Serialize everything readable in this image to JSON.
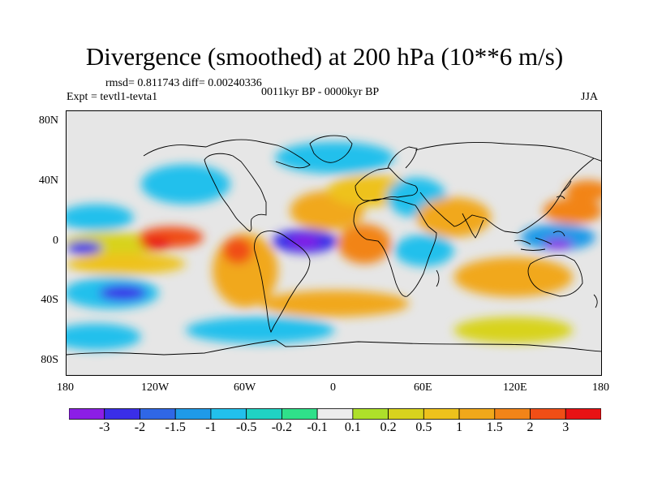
{
  "title": "Divergence (smoothed) at 200 hPa (10**6 m/s)",
  "stats": "rmsd= 0.811743 diff= 0.00240336",
  "experiment": "Expt = tevtl1-tevta1",
  "period": "0011kyr BP - 0000kyr BP",
  "season": "JJA",
  "lat_ticks": [
    "80N",
    "40N",
    "0",
    "40S",
    "80S"
  ],
  "lon_ticks": [
    "180",
    "120W",
    "60W",
    "0",
    "60E",
    "120E",
    "180"
  ],
  "colorbar": {
    "colors": [
      "#8c1ee6",
      "#3a2ee8",
      "#2f67e6",
      "#1f9ae8",
      "#22c0ec",
      "#20d3c3",
      "#2fe08a",
      "#ececec",
      "#aee02a",
      "#d8d31e",
      "#eec21c",
      "#f1a81a",
      "#f28418",
      "#f04e16",
      "#e81214"
    ],
    "labels": [
      "-3",
      "-2",
      "-1.5",
      "-1",
      "-0.5",
      "-0.2",
      "-0.1",
      "0.1",
      "0.2",
      "0.5",
      "1",
      "1.5",
      "2",
      "3"
    ]
  },
  "map_data": {
    "background": "#e6e6e6",
    "blobs": [
      {
        "lon": -150,
        "lat": 0,
        "rx": 32,
        "ry": 9,
        "c": 9
      },
      {
        "lon": -110,
        "lat": 5,
        "rx": 22,
        "ry": 8,
        "c": 13
      },
      {
        "lon": -120,
        "lat": 0,
        "rx": 10,
        "ry": 5,
        "c": 14
      },
      {
        "lon": -168,
        "lat": -3,
        "rx": 12,
        "ry": 5,
        "c": 1
      },
      {
        "lon": -140,
        "lat": -15,
        "rx": 40,
        "ry": 8,
        "c": 10
      },
      {
        "lon": -150,
        "lat": -37,
        "rx": 32,
        "ry": 12,
        "c": 4
      },
      {
        "lon": -142,
        "lat": -37,
        "rx": 16,
        "ry": 6,
        "c": 1
      },
      {
        "lon": -160,
        "lat": 20,
        "rx": 25,
        "ry": 10,
        "c": 4
      },
      {
        "lon": -60,
        "lat": -20,
        "rx": 22,
        "ry": 28,
        "c": 11
      },
      {
        "lon": -65,
        "lat": -5,
        "rx": 10,
        "ry": 10,
        "c": 13
      },
      {
        "lon": -20,
        "lat": 2,
        "rx": 22,
        "ry": 9,
        "c": 1
      },
      {
        "lon": -20,
        "lat": 2,
        "rx": 10,
        "ry": 4,
        "c": 0
      },
      {
        "lon": -5,
        "lat": 25,
        "rx": 25,
        "ry": 15,
        "c": 11
      },
      {
        "lon": 20,
        "lat": 0,
        "rx": 18,
        "ry": 15,
        "c": 12
      },
      {
        "lon": 25,
        "lat": 40,
        "rx": 30,
        "ry": 12,
        "c": 10
      },
      {
        "lon": 55,
        "lat": 35,
        "rx": 20,
        "ry": 15,
        "c": 4
      },
      {
        "lon": 60,
        "lat": -5,
        "rx": 20,
        "ry": 12,
        "c": 4
      },
      {
        "lon": 80,
        "lat": 20,
        "rx": 25,
        "ry": 15,
        "c": 11
      },
      {
        "lon": 150,
        "lat": 5,
        "rx": 25,
        "ry": 10,
        "c": 3
      },
      {
        "lon": 150,
        "lat": 0,
        "rx": 10,
        "ry": 4,
        "c": 0
      },
      {
        "lon": 120,
        "lat": -25,
        "rx": 40,
        "ry": 15,
        "c": 11
      },
      {
        "lon": 160,
        "lat": 25,
        "rx": 20,
        "ry": 10,
        "c": 12
      },
      {
        "lon": 170,
        "lat": 40,
        "rx": 15,
        "ry": 8,
        "c": 12
      },
      {
        "lon": -100,
        "lat": 45,
        "rx": 30,
        "ry": 15,
        "c": 4
      },
      {
        "lon": 0,
        "lat": 65,
        "rx": 40,
        "ry": 12,
        "c": 4
      },
      {
        "lon": 0,
        "lat": -45,
        "rx": 50,
        "ry": 10,
        "c": 11
      },
      {
        "lon": -50,
        "lat": -65,
        "rx": 50,
        "ry": 10,
        "c": 4
      },
      {
        "lon": 120,
        "lat": -65,
        "rx": 40,
        "ry": 10,
        "c": 9
      },
      {
        "lon": -160,
        "lat": -70,
        "rx": 30,
        "ry": 10,
        "c": 4
      }
    ]
  }
}
